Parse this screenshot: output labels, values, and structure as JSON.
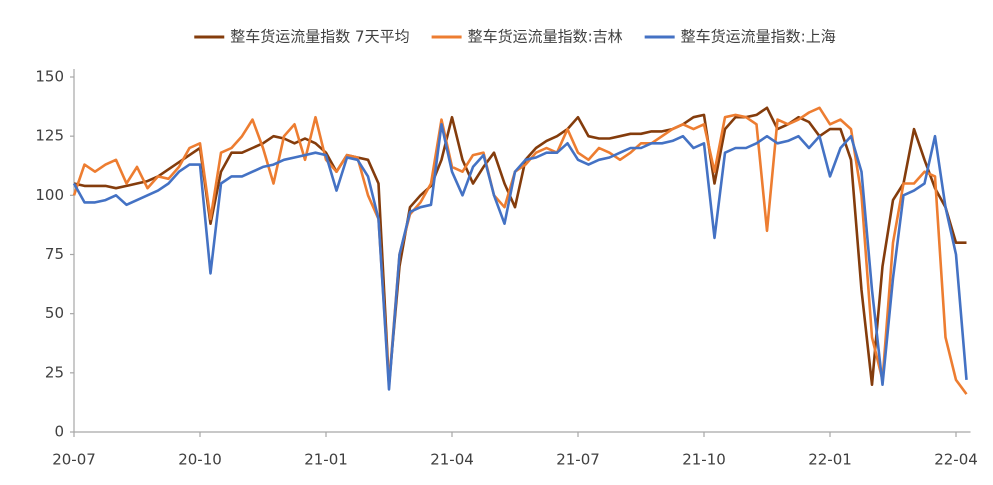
{
  "chart_data": {
    "type": "line",
    "categories": [
      "20-07",
      null,
      null,
      null,
      null,
      null,
      null,
      null,
      null,
      null,
      null,
      null,
      "20-10",
      null,
      null,
      null,
      null,
      null,
      null,
      null,
      null,
      null,
      null,
      null,
      "21-01",
      null,
      null,
      null,
      null,
      null,
      null,
      null,
      null,
      null,
      null,
      null,
      "21-04",
      null,
      null,
      null,
      null,
      null,
      null,
      null,
      null,
      null,
      null,
      null,
      "21-07",
      null,
      null,
      null,
      null,
      null,
      null,
      null,
      null,
      null,
      null,
      null,
      "21-10",
      null,
      null,
      null,
      null,
      null,
      null,
      null,
      null,
      null,
      null,
      null,
      "22-01",
      null,
      null,
      null,
      null,
      null,
      null,
      null,
      null,
      null,
      null,
      null,
      "22-04",
      null
    ],
    "series": [
      {
        "name": "整车货运流量指数 7天平均",
        "color": "#843c0c",
        "values": [
          105,
          104,
          104,
          104,
          103,
          104,
          105,
          106,
          108,
          111,
          114,
          117,
          120,
          88,
          110,
          118,
          118,
          120,
          122,
          125,
          124,
          122,
          124,
          122,
          118,
          110,
          117,
          116,
          115,
          105,
          20,
          70,
          95,
          100,
          104,
          115,
          133,
          115,
          105,
          112,
          118,
          105,
          95,
          115,
          120,
          123,
          125,
          128,
          133,
          125,
          124,
          124,
          125,
          126,
          126,
          127,
          127,
          128,
          130,
          133,
          134,
          105,
          128,
          133,
          133,
          134,
          137,
          128,
          130,
          133,
          131,
          125,
          128,
          128,
          115,
          60,
          20,
          70,
          98,
          105,
          128,
          115,
          103,
          95,
          80,
          80
        ]
      },
      {
        "name": "整车货运流量指数:吉林",
        "color": "#ed7d31",
        "values": [
          100,
          113,
          110,
          113,
          115,
          105,
          112,
          103,
          108,
          107,
          112,
          120,
          122,
          90,
          118,
          120,
          125,
          132,
          120,
          105,
          125,
          130,
          115,
          133,
          115,
          110,
          117,
          116,
          100,
          90,
          20,
          75,
          92,
          97,
          105,
          132,
          112,
          110,
          117,
          118,
          100,
          95,
          110,
          113,
          118,
          120,
          118,
          128,
          118,
          115,
          120,
          118,
          115,
          118,
          122,
          122,
          125,
          128,
          130,
          128,
          130,
          110,
          133,
          134,
          133,
          130,
          85,
          132,
          130,
          132,
          135,
          137,
          130,
          132,
          128,
          100,
          40,
          22,
          80,
          105,
          105,
          110,
          108,
          40,
          22,
          16
        ]
      },
      {
        "name": "整车货运流量指数:上海",
        "color": "#4472c4",
        "values": [
          105,
          97,
          97,
          98,
          100,
          96,
          98,
          100,
          102,
          105,
          110,
          113,
          113,
          67,
          105,
          108,
          108,
          110,
          112,
          113,
          115,
          116,
          117,
          118,
          117,
          102,
          116,
          115,
          108,
          90,
          18,
          75,
          93,
          95,
          96,
          130,
          110,
          100,
          112,
          117,
          100,
          88,
          110,
          115,
          116,
          118,
          118,
          122,
          115,
          113,
          115,
          116,
          118,
          120,
          120,
          122,
          122,
          123,
          125,
          120,
          122,
          82,
          118,
          120,
          120,
          122,
          125,
          122,
          123,
          125,
          120,
          125,
          108,
          120,
          125,
          110,
          60,
          20,
          65,
          100,
          102,
          105,
          125,
          95,
          75,
          22
        ]
      }
    ],
    "ylim": [
      0,
      150
    ],
    "yticks": [
      0,
      25,
      50,
      75,
      100,
      125,
      150
    ],
    "grid": false,
    "legend": "top"
  }
}
